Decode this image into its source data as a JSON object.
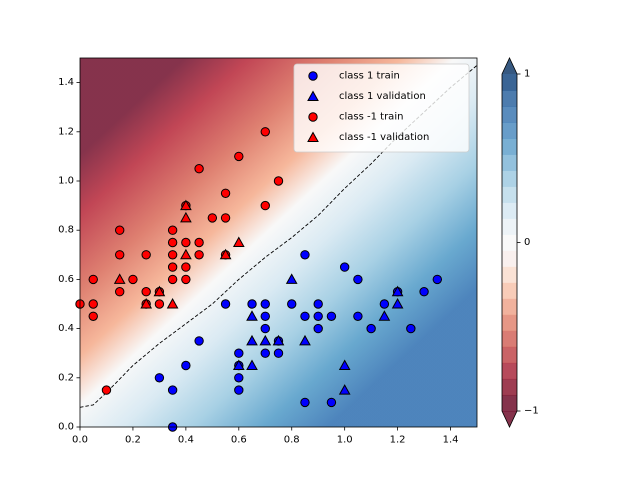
{
  "chart_data": {
    "type": "scatter",
    "title": "",
    "xlabel": "",
    "ylabel": "",
    "xlim": [
      0.0,
      1.5
    ],
    "ylim": [
      0.0,
      1.5
    ],
    "x_ticks": [
      "0.0",
      "0.2",
      "0.4",
      "0.6",
      "0.8",
      "1.0",
      "1.2",
      "1.4"
    ],
    "y_ticks": [
      "0.0",
      "0.2",
      "0.4",
      "0.6",
      "0.8",
      "1.0",
      "1.2",
      "1.4"
    ],
    "background": {
      "kind": "filled_contour",
      "colormap": "RdBu",
      "value_range": [
        -1,
        1
      ],
      "decision_boundary": {
        "style": "dashed",
        "level": 0,
        "points": [
          [
            0.0,
            0.08
          ],
          [
            0.05,
            0.09
          ],
          [
            0.1,
            0.14
          ],
          [
            0.2,
            0.25
          ],
          [
            0.3,
            0.34
          ],
          [
            0.4,
            0.42
          ],
          [
            0.5,
            0.5
          ],
          [
            0.6,
            0.6
          ],
          [
            0.7,
            0.69
          ],
          [
            0.8,
            0.77
          ],
          [
            0.9,
            0.86
          ],
          [
            1.0,
            0.97
          ],
          [
            1.1,
            1.07
          ],
          [
            1.2,
            1.18
          ],
          [
            1.3,
            1.28
          ],
          [
            1.4,
            1.38
          ],
          [
            1.5,
            1.47
          ]
        ]
      }
    },
    "legend_position": "upper-right",
    "series": [
      {
        "name": "class 1 train",
        "marker": "circle",
        "color": "#0000ff",
        "points": [
          [
            0.35,
            0.0
          ],
          [
            0.3,
            0.2
          ],
          [
            0.35,
            0.15
          ],
          [
            0.4,
            0.25
          ],
          [
            0.45,
            0.35
          ],
          [
            0.55,
            0.5
          ],
          [
            0.6,
            0.3
          ],
          [
            0.6,
            0.2
          ],
          [
            0.6,
            0.15
          ],
          [
            0.6,
            0.25
          ],
          [
            0.65,
            0.5
          ],
          [
            0.7,
            0.5
          ],
          [
            0.7,
            0.45
          ],
          [
            0.7,
            0.4
          ],
          [
            0.7,
            0.3
          ],
          [
            0.75,
            0.35
          ],
          [
            0.75,
            0.3
          ],
          [
            0.8,
            0.5
          ],
          [
            0.85,
            0.45
          ],
          [
            0.85,
            0.7
          ],
          [
            0.85,
            0.1
          ],
          [
            0.9,
            0.5
          ],
          [
            0.9,
            0.45
          ],
          [
            0.9,
            0.4
          ],
          [
            0.95,
            0.45
          ],
          [
            0.95,
            0.1
          ],
          [
            1.0,
            0.65
          ],
          [
            1.05,
            0.6
          ],
          [
            1.05,
            0.45
          ],
          [
            1.1,
            0.4
          ],
          [
            1.15,
            0.5
          ],
          [
            1.2,
            0.55
          ],
          [
            1.25,
            0.4
          ],
          [
            1.3,
            0.55
          ],
          [
            1.35,
            0.6
          ]
        ]
      },
      {
        "name": "class 1 validation",
        "marker": "triangle",
        "color": "#0000ff",
        "points": [
          [
            0.6,
            0.25
          ],
          [
            0.65,
            0.35
          ],
          [
            0.65,
            0.25
          ],
          [
            0.65,
            0.45
          ],
          [
            0.7,
            0.35
          ],
          [
            0.75,
            0.35
          ],
          [
            0.8,
            0.6
          ],
          [
            0.85,
            0.35
          ],
          [
            1.0,
            0.25
          ],
          [
            1.0,
            0.15
          ],
          [
            1.15,
            0.45
          ],
          [
            1.2,
            0.5
          ],
          [
            1.2,
            0.55
          ]
        ]
      },
      {
        "name": "class -1 train",
        "marker": "circle",
        "color": "#ff0000",
        "points": [
          [
            0.0,
            0.5
          ],
          [
            0.05,
            0.6
          ],
          [
            0.05,
            0.5
          ],
          [
            0.05,
            0.45
          ],
          [
            0.1,
            0.15
          ],
          [
            0.15,
            0.8
          ],
          [
            0.15,
            0.7
          ],
          [
            0.15,
            0.55
          ],
          [
            0.2,
            0.6
          ],
          [
            0.25,
            0.7
          ],
          [
            0.25,
            0.55
          ],
          [
            0.25,
            0.5
          ],
          [
            0.3,
            0.55
          ],
          [
            0.3,
            0.5
          ],
          [
            0.35,
            0.8
          ],
          [
            0.35,
            0.75
          ],
          [
            0.35,
            0.7
          ],
          [
            0.35,
            0.65
          ],
          [
            0.35,
            0.6
          ],
          [
            0.4,
            0.9
          ],
          [
            0.4,
            0.75
          ],
          [
            0.4,
            0.65
          ],
          [
            0.4,
            0.6
          ],
          [
            0.45,
            1.05
          ],
          [
            0.45,
            0.75
          ],
          [
            0.45,
            0.7
          ],
          [
            0.5,
            0.85
          ],
          [
            0.55,
            0.95
          ],
          [
            0.55,
            0.85
          ],
          [
            0.55,
            0.7
          ],
          [
            0.6,
            1.1
          ],
          [
            0.7,
            1.2
          ],
          [
            0.7,
            0.9
          ],
          [
            0.75,
            1.0
          ]
        ]
      },
      {
        "name": "class -1 validation",
        "marker": "triangle",
        "color": "#ff0000",
        "points": [
          [
            0.15,
            0.6
          ],
          [
            0.25,
            0.5
          ],
          [
            0.3,
            0.55
          ],
          [
            0.35,
            0.5
          ],
          [
            0.4,
            0.9
          ],
          [
            0.4,
            0.85
          ],
          [
            0.4,
            0.7
          ],
          [
            0.55,
            0.7
          ],
          [
            0.6,
            0.75
          ]
        ]
      }
    ],
    "colorbar": {
      "tick_labels": [
        "1",
        "0",
        "−1"
      ],
      "tick_values": [
        1,
        0,
        -1
      ],
      "levels": 21,
      "extend": "both"
    }
  }
}
